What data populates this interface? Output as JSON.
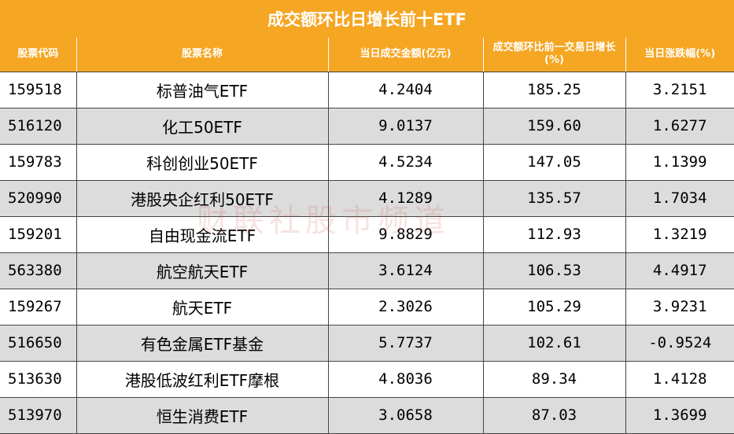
{
  "title": "成交额环比日增长前十ETF",
  "headers": [
    "股票代码",
    "股票名称",
    "当日成交金额(亿元)",
    "成交额环比前一交易日增长(%)",
    "当日涨跌幅(%)"
  ],
  "rows": [
    {
      "code": "159518",
      "name": "标普油气ETF",
      "turnover": "4.2404",
      "growth": "185.25",
      "change": "3.2151"
    },
    {
      "code": "516120",
      "name": "化工50ETF",
      "turnover": "9.0137",
      "growth": "159.60",
      "change": "1.6277"
    },
    {
      "code": "159783",
      "name": "科创创业50ETF",
      "turnover": "4.5234",
      "growth": "147.05",
      "change": "1.1399"
    },
    {
      "code": "520990",
      "name": "港股央企红利50ETF",
      "turnover": "4.1289",
      "growth": "135.57",
      "change": "1.7034"
    },
    {
      "code": "159201",
      "name": "自由现金流ETF",
      "turnover": "9.8829",
      "growth": "112.93",
      "change": "1.3219"
    },
    {
      "code": "563380",
      "name": "航空航天ETF",
      "turnover": "3.6124",
      "growth": "106.53",
      "change": "4.4917"
    },
    {
      "code": "159267",
      "name": "航天ETF",
      "turnover": "2.3026",
      "growth": "105.29",
      "change": "3.9231"
    },
    {
      "code": "516650",
      "name": "有色金属ETF基金",
      "turnover": "5.7737",
      "growth": "102.61",
      "change": "-0.9524"
    },
    {
      "code": "513630",
      "name": "港股低波红利ETF摩根",
      "turnover": "4.8036",
      "growth": "89.34",
      "change": "1.4128"
    },
    {
      "code": "513970",
      "name": "恒生消费ETF",
      "turnover": "3.0658",
      "growth": "87.03",
      "change": "1.3699"
    }
  ],
  "watermark": "财联社股市频道",
  "colors": {
    "header": "#f5a623",
    "alt_row": "#dcdcdc"
  }
}
